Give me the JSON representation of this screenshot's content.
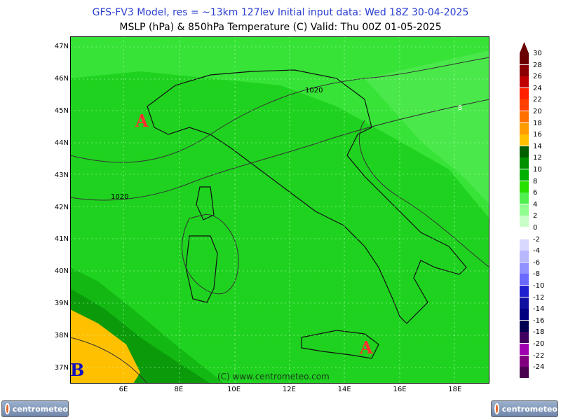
{
  "header": {
    "line1": "GFS-FV3 Model, res = ~13km 127lev    Initial input data: Wed 18Z 30-04-2025",
    "line2": "MSLP (hPa) & 850hPa Temperature (C)  Valid: Thu 00Z 01-05-2025"
  },
  "map": {
    "lat_labels": [
      "47N",
      "46N",
      "45N",
      "44N",
      "43N",
      "42N",
      "41N",
      "40N",
      "39N",
      "38N",
      "37N"
    ],
    "lon_labels": [
      "6E",
      "8E",
      "10E",
      "12E",
      "14E",
      "16E",
      "18E"
    ],
    "isobar_labels": [
      "1020",
      "1020",
      "8"
    ],
    "pressure_centers": [
      {
        "label": "A",
        "kind": "high"
      },
      {
        "label": "A",
        "kind": "high"
      },
      {
        "label": "B",
        "kind": "low"
      }
    ],
    "watermark": "(C) www.centrometeo.com"
  },
  "colorbar": {
    "labels": [
      "30",
      "28",
      "26",
      "24",
      "22",
      "20",
      "18",
      "16",
      "14",
      "12",
      "10",
      "8",
      "6",
      "4",
      "2",
      "0",
      "-2",
      "-4",
      "-6",
      "-8",
      "-10",
      "-12",
      "-14",
      "-16",
      "-18",
      "-20",
      "-22",
      "-24"
    ],
    "colors": [
      "#6b0000",
      "#8b0000",
      "#c00000",
      "#ff2000",
      "#ff4000",
      "#ff7000",
      "#ff9c00",
      "#ffc000",
      "#006000",
      "#009000",
      "#00b000",
      "#26e000",
      "#50f050",
      "#90ff90",
      "#c8ffc8",
      "#ffffff",
      "#d8d8ff",
      "#b8b8ff",
      "#9090ff",
      "#6a6aff",
      "#2020d0",
      "#1010a0",
      "#000080",
      "#000050",
      "#400060",
      "#a000b0",
      "#800080",
      "#4c0050"
    ]
  },
  "logos": {
    "left": "centrometeo",
    "right": "centrometeo"
  }
}
